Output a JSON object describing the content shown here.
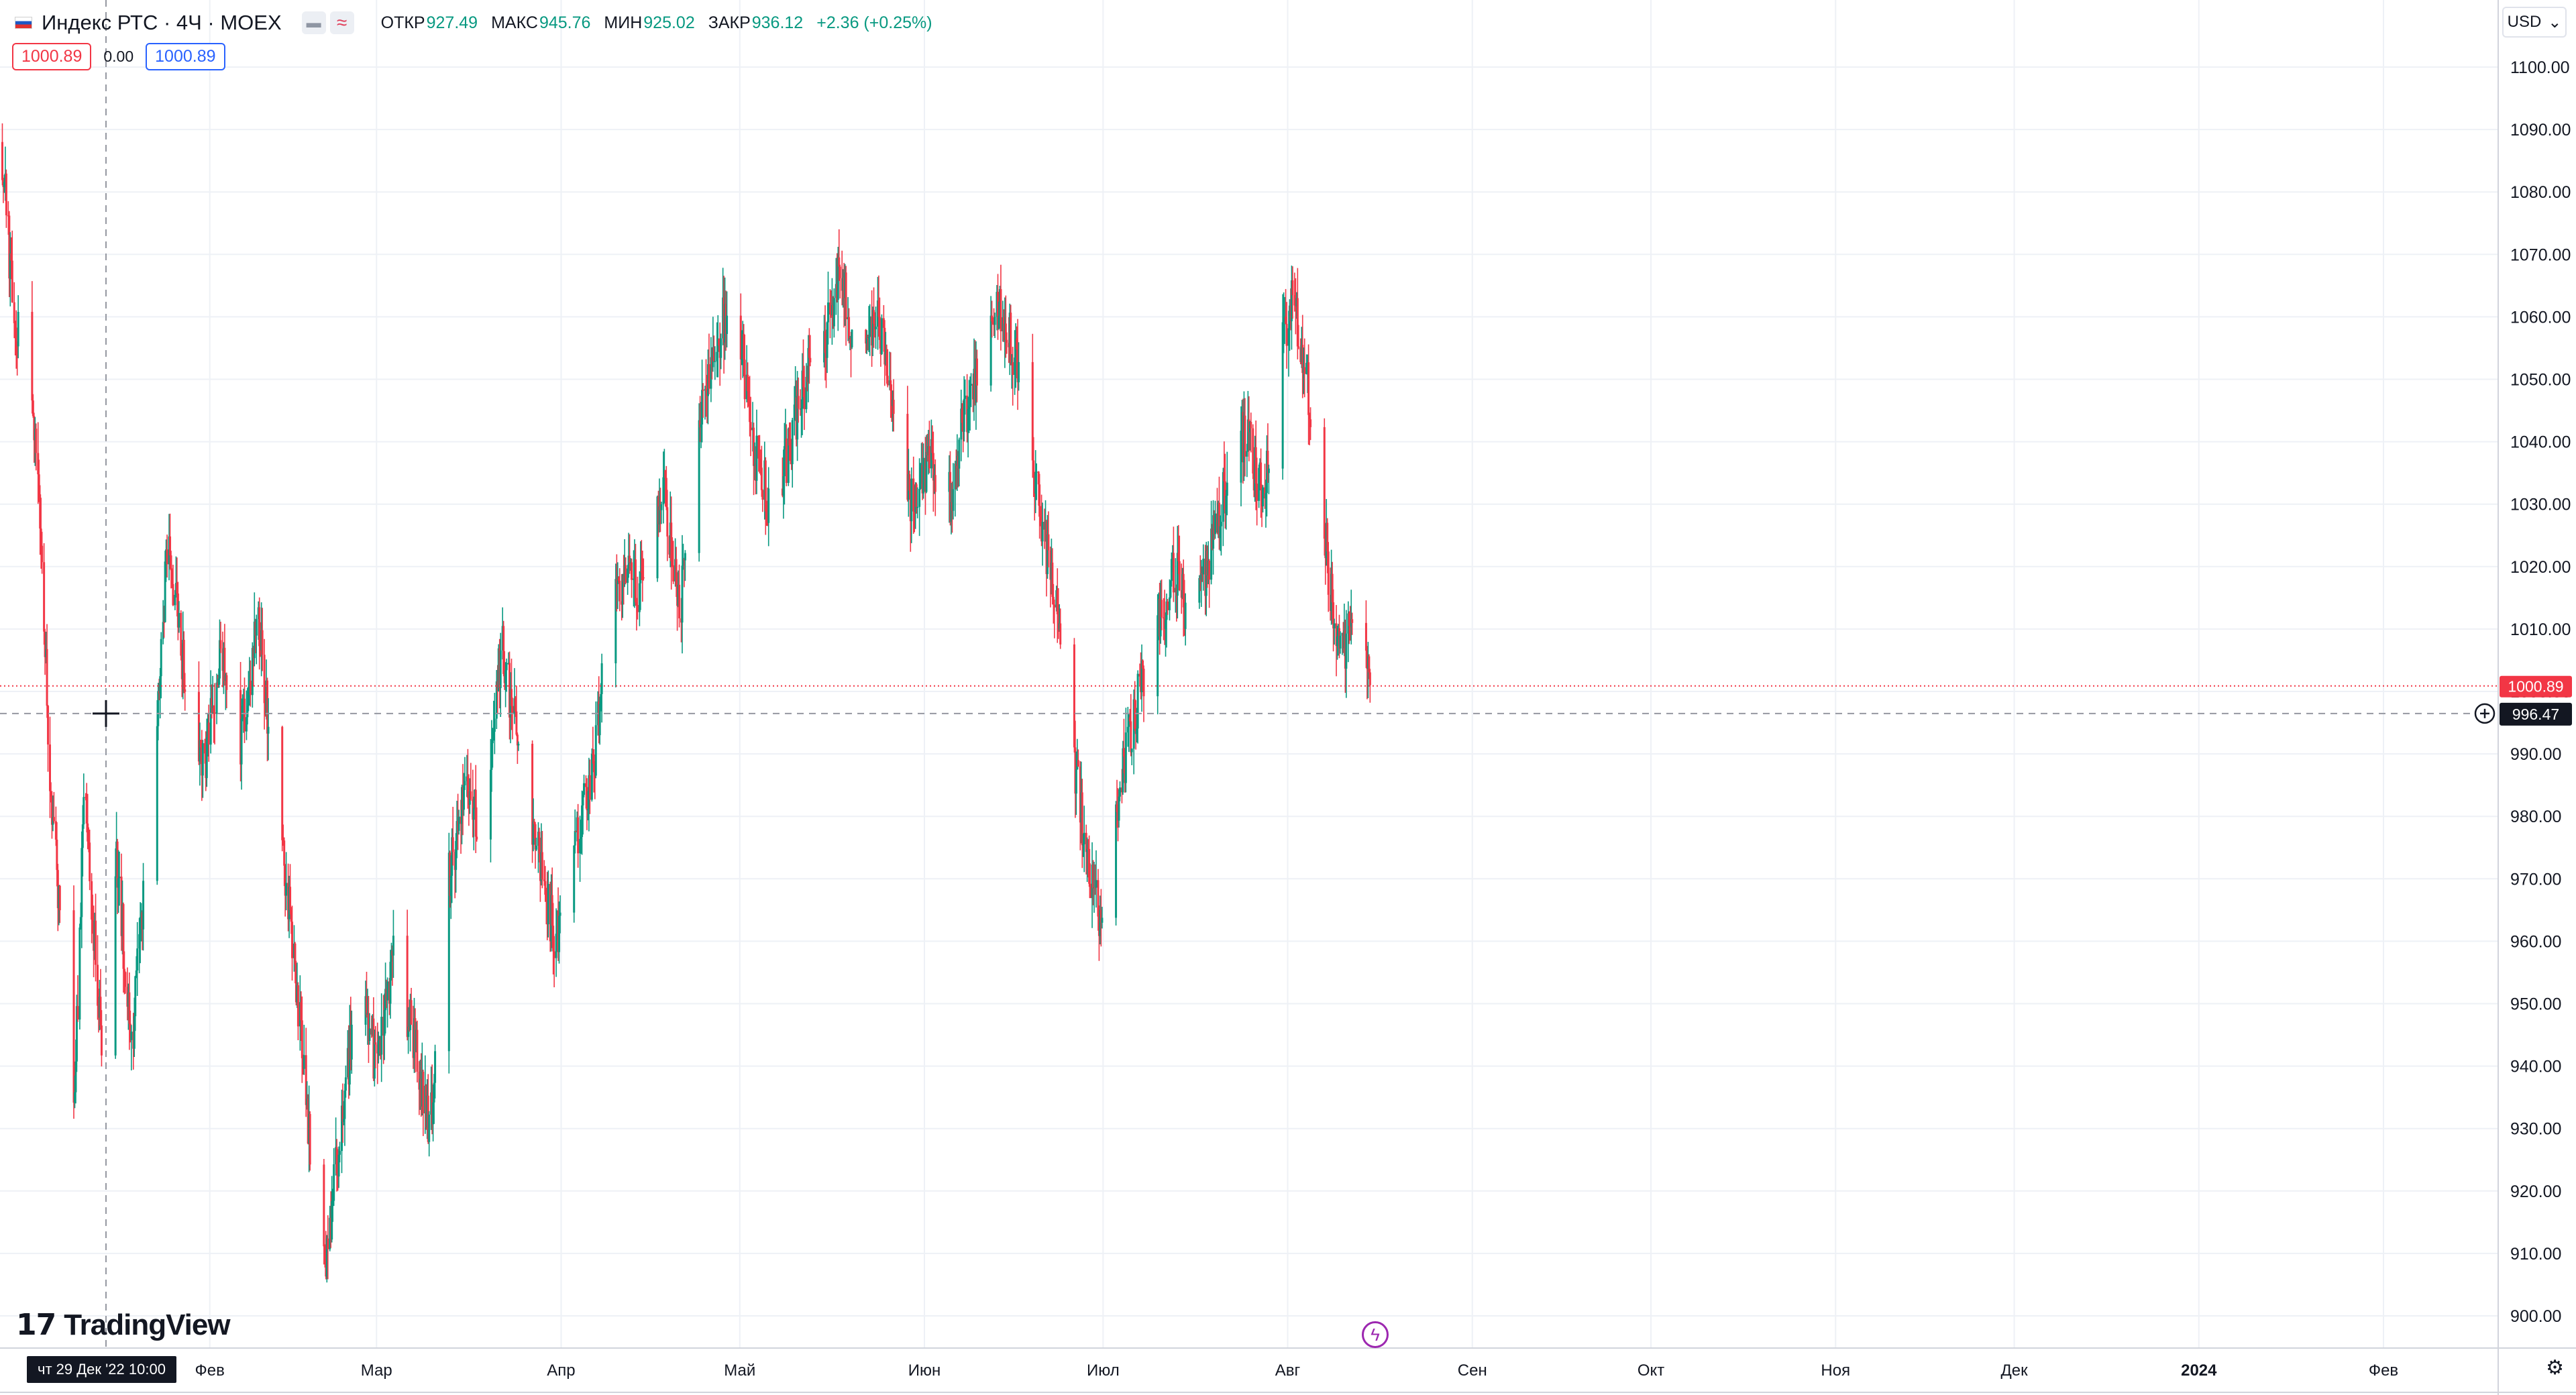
{
  "legend": {
    "symbol": "Индекс РТС · 4Ч · MOEX",
    "ohlc": [
      {
        "key": "ОТКР",
        "value": "927.49"
      },
      {
        "key": "МАКС",
        "value": "945.76"
      },
      {
        "key": "МИН",
        "value": "925.02"
      },
      {
        "key": "ЗАКР",
        "value": "936.12"
      }
    ],
    "change": "+2.36 (+0.25%)"
  },
  "price_boxes": {
    "sell": "1000.89",
    "spread": "0.00",
    "buy": "1000.89"
  },
  "currency": "USD",
  "branding": {
    "logo_text": "TradingView"
  },
  "crosshair": {
    "time_label": "чт 29 Дек '22   10:00",
    "price_label": "996.47"
  },
  "last_price_label": "1000.89",
  "colors": {
    "up": "#089981",
    "down": "#f23645",
    "grid": "#eef1f6",
    "crosshair": "#9598a1"
  },
  "icons": {
    "flash": "lightning-icon",
    "settings": "gear-icon",
    "add": "plus-circle-icon"
  },
  "chart_data": {
    "type": "candlestick",
    "interval": "4Ч",
    "y_axis": {
      "min": 900,
      "max": 1100,
      "ticks": [
        "900.00",
        "910.00",
        "920.00",
        "930.00",
        "940.00",
        "950.00",
        "960.00",
        "970.00",
        "980.00",
        "990.00",
        "1000.00",
        "1010.00",
        "1020.00",
        "1030.00",
        "1040.00",
        "1050.00",
        "1060.00",
        "1070.00",
        "1080.00",
        "1090.00",
        "1100.00"
      ]
    },
    "x_axis": {
      "labels": [
        "Фев",
        "Мар",
        "Апр",
        "Май",
        "Июн",
        "Июл",
        "Авг",
        "Сен",
        "Окт",
        "Ноя",
        "Дек",
        "2024",
        "Фев"
      ]
    },
    "last_price": 1000.89,
    "crosshair_price": 996.47,
    "path": [
      {
        "d": "2022-12-28",
        "p": 1088
      },
      {
        "d": "2022-12-30",
        "p": 1061
      },
      {
        "d": "2023-01-03",
        "p": 1040
      },
      {
        "d": "2023-01-05",
        "p": 990
      },
      {
        "d": "2023-01-07",
        "p": 962
      },
      {
        "d": "2023-01-09",
        "p": 928
      },
      {
        "d": "2023-01-11",
        "p": 985
      },
      {
        "d": "2023-01-14",
        "p": 940
      },
      {
        "d": "2023-01-16",
        "p": 975
      },
      {
        "d": "2023-01-19",
        "p": 945
      },
      {
        "d": "2023-01-22",
        "p": 980
      },
      {
        "d": "2023-01-25",
        "p": 1025
      },
      {
        "d": "2023-01-28",
        "p": 1000
      },
      {
        "d": "2023-01-31",
        "p": 988
      },
      {
        "d": "2023-02-03",
        "p": 1008
      },
      {
        "d": "2023-02-06",
        "p": 990
      },
      {
        "d": "2023-02-09",
        "p": 1012
      },
      {
        "d": "2023-02-12",
        "p": 985
      },
      {
        "d": "2023-02-15",
        "p": 960
      },
      {
        "d": "2023-02-18",
        "p": 925
      },
      {
        "d": "2023-02-20",
        "p": 906
      },
      {
        "d": "2023-02-23",
        "p": 930
      },
      {
        "d": "2023-02-26",
        "p": 955
      },
      {
        "d": "2023-03-01",
        "p": 940
      },
      {
        "d": "2023-03-04",
        "p": 958
      },
      {
        "d": "2023-03-07",
        "p": 945
      },
      {
        "d": "2023-03-10",
        "p": 930
      },
      {
        "d": "2023-03-13",
        "p": 970
      },
      {
        "d": "2023-03-16",
        "p": 985
      },
      {
        "d": "2023-03-19",
        "p": 975
      },
      {
        "d": "2023-03-22",
        "p": 1008
      },
      {
        "d": "2023-03-25",
        "p": 990
      },
      {
        "d": "2023-03-28",
        "p": 975
      },
      {
        "d": "2023-03-31",
        "p": 960
      },
      {
        "d": "2023-04-03",
        "p": 975
      },
      {
        "d": "2023-04-06",
        "p": 985
      },
      {
        "d": "2023-04-09",
        "p": 1010
      },
      {
        "d": "2023-04-12",
        "p": 1020
      },
      {
        "d": "2023-04-15",
        "p": 1015
      },
      {
        "d": "2023-04-18",
        "p": 1035
      },
      {
        "d": "2023-04-21",
        "p": 1012
      },
      {
        "d": "2023-04-24",
        "p": 1045
      },
      {
        "d": "2023-04-27",
        "p": 1055
      },
      {
        "d": "2023-04-30",
        "p": 1066
      },
      {
        "d": "2023-05-03",
        "p": 1040
      },
      {
        "d": "2023-05-06",
        "p": 1030
      },
      {
        "d": "2023-05-09",
        "p": 1038
      },
      {
        "d": "2023-05-12",
        "p": 1050
      },
      {
        "d": "2023-05-15",
        "p": 1055
      },
      {
        "d": "2023-05-18",
        "p": 1068
      },
      {
        "d": "2023-05-21",
        "p": 1050
      },
      {
        "d": "2023-05-24",
        "p": 1060
      },
      {
        "d": "2023-05-27",
        "p": 1045
      },
      {
        "d": "2023-05-30",
        "p": 1030
      },
      {
        "d": "2023-06-02",
        "p": 1038
      },
      {
        "d": "2023-06-05",
        "p": 1030
      },
      {
        "d": "2023-06-08",
        "p": 1045
      },
      {
        "d": "2023-06-11",
        "p": 1055
      },
      {
        "d": "2023-06-14",
        "p": 1062
      },
      {
        "d": "2023-06-17",
        "p": 1050
      },
      {
        "d": "2023-06-20",
        "p": 1030
      },
      {
        "d": "2023-06-23",
        "p": 1015
      },
      {
        "d": "2023-06-26",
        "p": 990
      },
      {
        "d": "2023-06-28",
        "p": 975
      },
      {
        "d": "2023-07-01",
        "p": 960
      },
      {
        "d": "2023-07-04",
        "p": 985
      },
      {
        "d": "2023-07-07",
        "p": 1000
      },
      {
        "d": "2023-07-10",
        "p": 1010
      },
      {
        "d": "2023-07-13",
        "p": 1020
      },
      {
        "d": "2023-07-16",
        "p": 1010
      },
      {
        "d": "2023-07-19",
        "p": 1022
      },
      {
        "d": "2023-07-22",
        "p": 1035
      },
      {
        "d": "2023-07-25",
        "p": 1042
      },
      {
        "d": "2023-07-28",
        "p": 1030
      },
      {
        "d": "2023-07-31",
        "p": 1055
      },
      {
        "d": "2023-08-02",
        "p": 1063
      },
      {
        "d": "2023-08-04",
        "p": 1050
      },
      {
        "d": "2023-08-06",
        "p": 1040
      },
      {
        "d": "2023-08-08",
        "p": 1018
      },
      {
        "d": "2023-08-10",
        "p": 1005
      },
      {
        "d": "2023-08-12",
        "p": 1014
      },
      {
        "d": "2023-08-15",
        "p": 1000.89
      }
    ]
  }
}
